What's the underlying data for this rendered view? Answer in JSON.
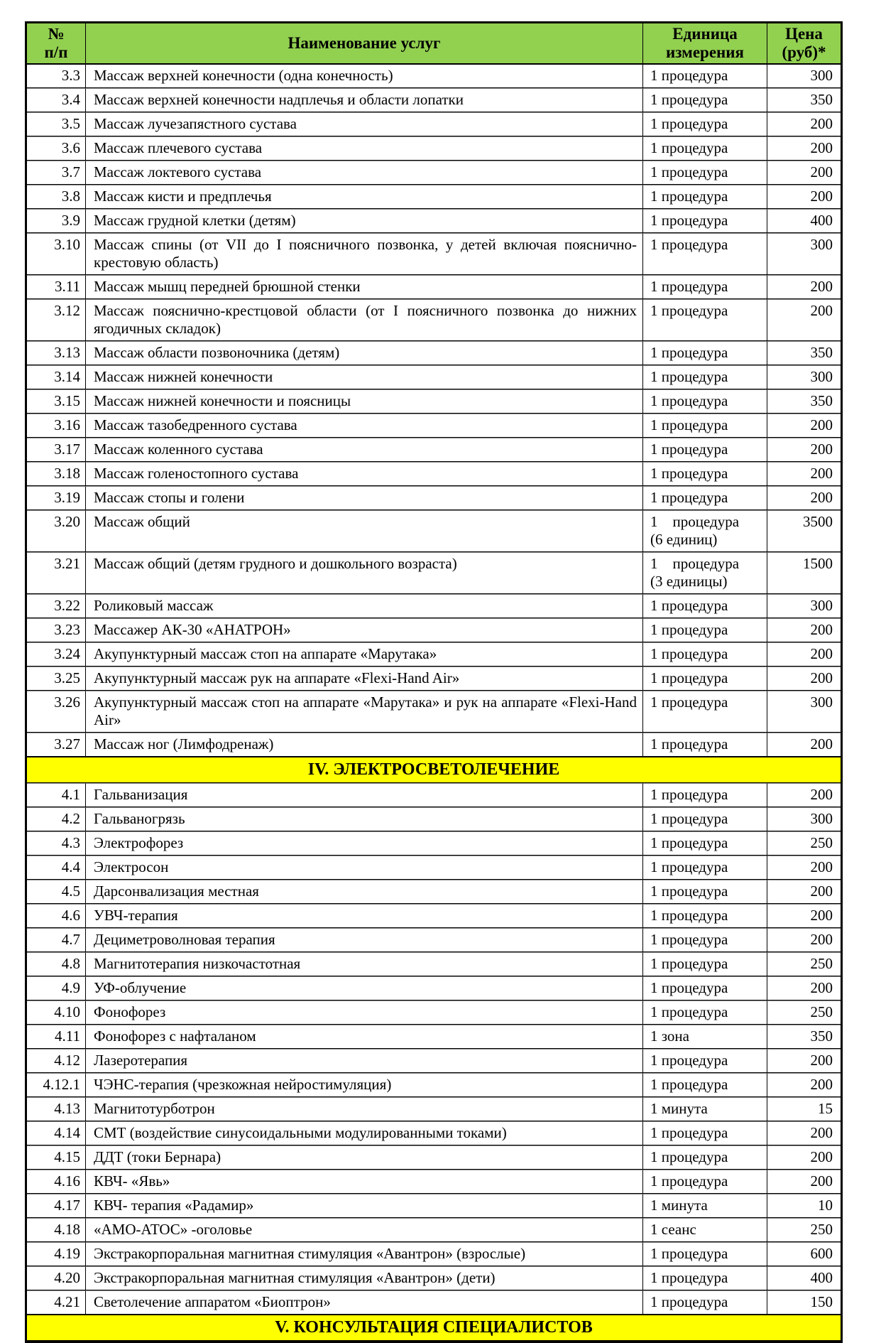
{
  "table": {
    "colors": {
      "header_bg": "#92D050",
      "section_bg": "#FFFF00"
    },
    "headers": {
      "num": "№\nп/п",
      "name": "Наименование услуг",
      "unit": "Единица\nизмерения",
      "price": "Цена\n(руб)*"
    },
    "rows": [
      {
        "num": "3.3",
        "name": "Массаж верхней конечности (одна конечность)",
        "unit": "1 процедура",
        "price": "300"
      },
      {
        "num": "3.4",
        "name": "Массаж верхней конечности надплечья и области лопатки",
        "unit": "1 процедура",
        "price": "350"
      },
      {
        "num": "3.5",
        "name": "Массаж лучезапястного сустава",
        "unit": "1 процедура",
        "price": "200"
      },
      {
        "num": "3.6",
        "name": "Массаж плечевого сустава",
        "unit": "1 процедура",
        "price": "200"
      },
      {
        "num": "3.7",
        "name": "Массаж локтевого сустава",
        "unit": "1 процедура",
        "price": "200"
      },
      {
        "num": "3.8",
        "name": "Массаж кисти и предплечья",
        "unit": "1 процедура",
        "price": "200"
      },
      {
        "num": "3.9",
        "name": "Массаж грудной клетки (детям)",
        "unit": "1 процедура",
        "price": "400"
      },
      {
        "num": "3.10",
        "name": "Массаж спины (от VII до I поясничного позвонка, у детей включая пояснично-крестовую область)",
        "unit": "1 процедура",
        "price": "300"
      },
      {
        "num": "3.11",
        "name": "Массаж мышц передней брюшной стенки",
        "unit": "1 процедура",
        "price": "200"
      },
      {
        "num": "3.12",
        "name": "Массаж пояснично-крестцовой области (от I поясничного позвонка до нижних ягодичных складок)",
        "unit": "1 процедура",
        "price": "200"
      },
      {
        "num": "3.13",
        "name": "Массаж области позвоночника (детям)",
        "unit": "1 процедура",
        "price": "350"
      },
      {
        "num": "3.14",
        "name": "Массаж нижней конечности",
        "unit": "1 процедура",
        "price": "300"
      },
      {
        "num": "3.15",
        "name": "Массаж нижней конечности и поясницы",
        "unit": "1 процедура",
        "price": "350"
      },
      {
        "num": "3.16",
        "name": "Массаж тазобедренного сустава",
        "unit": "1 процедура",
        "price": "200"
      },
      {
        "num": "3.17",
        "name": "Массаж коленного сустава",
        "unit": "1 процедура",
        "price": "200"
      },
      {
        "num": "3.18",
        "name": "Массаж голеностопного сустава",
        "unit": "1 процедура",
        "price": "200"
      },
      {
        "num": "3.19",
        "name": "Массаж стопы и голени",
        "unit": "1 процедура",
        "price": "200"
      },
      {
        "num": "3.20",
        "name": "Массаж общий",
        "unit": "1    процедура\n(6 единиц)",
        "price": "3500"
      },
      {
        "num": "3.21",
        "name": "Массаж общий (детям грудного и дошкольного возраста)",
        "unit": "1    процедура\n(3 единицы)",
        "price": "1500"
      },
      {
        "num": "3.22",
        "name": "Роликовый массаж",
        "unit": "1 процедура",
        "price": "300"
      },
      {
        "num": "3.23",
        "name": "Массажер АК-30 «АНАТРОН»",
        "unit": "1 процедура",
        "price": "200"
      },
      {
        "num": "3.24",
        "name": "Акупунктурный массаж стоп на аппарате «Марутака»",
        "unit": "1 процедура",
        "price": "200"
      },
      {
        "num": "3.25",
        "name": "Акупунктурный массаж рук на аппарате «Flexi-Hand Air»",
        "unit": "1 процедура",
        "price": "200"
      },
      {
        "num": "3.26",
        "name": "Акупунктурный массаж стоп на аппарате «Марутака» и рук на аппарате «Flexi-Hand Air»",
        "unit": "1 процедура",
        "price": "300"
      },
      {
        "num": "3.27",
        "name": "Массаж ног (Лимфодренаж)",
        "unit": "1 процедура",
        "price": "200"
      },
      {
        "section": "IV. ЭЛЕКТРОСВЕТОЛЕЧЕНИЕ"
      },
      {
        "num": "4.1",
        "name": "Гальванизация",
        "unit": "1 процедура",
        "price": "200"
      },
      {
        "num": "4.2",
        "name": "Гальваногрязь",
        "unit": "1 процедура",
        "price": "300"
      },
      {
        "num": "4.3",
        "name": "Электрофорез",
        "unit": "1 процедура",
        "price": "250"
      },
      {
        "num": "4.4",
        "name": "Электросон",
        "unit": "1 процедура",
        "price": "200"
      },
      {
        "num": "4.5",
        "name": "Дарсонвализация местная",
        "unit": "1 процедура",
        "price": "200"
      },
      {
        "num": "4.6",
        "name": "УВЧ-терапия",
        "unit": "1 процедура",
        "price": "200"
      },
      {
        "num": "4.7",
        "name": "Дециметроволновая терапия",
        "unit": "1 процедура",
        "price": "200"
      },
      {
        "num": "4.8",
        "name": "Магнитотерапия низкочастотная",
        "unit": "1 процедура",
        "price": "250"
      },
      {
        "num": "4.9",
        "name": "УФ-облучение",
        "unit": "1 процедура",
        "price": "200"
      },
      {
        "num": "4.10",
        "name": "Фонофорез",
        "unit": "1 процедура",
        "price": "250"
      },
      {
        "num": "4.11",
        "name": "Фонофорез с нафталаном",
        "unit": "1 зона",
        "price": "350"
      },
      {
        "num": "4.12",
        "name": "Лазеротерапия",
        "unit": "1 процедура",
        "price": "200"
      },
      {
        "num": "4.12.1",
        "name": "ЧЭНС-терапия (чрезкожная нейростимуляция)",
        "unit": "1 процедура",
        "price": "200"
      },
      {
        "num": "4.13",
        "name": "Магнитотурботрон",
        "unit": "1 минута",
        "price": "15"
      },
      {
        "num": "4.14",
        "name": "СМТ (воздействие синусоидальными модулированными токами)",
        "unit": "1 процедура",
        "price": "200"
      },
      {
        "num": "4.15",
        "name": "ДДТ (токи Бернара)",
        "unit": "1 процедура",
        "price": "200"
      },
      {
        "num": "4.16",
        "name": "КВЧ- «Явь»",
        "unit": "1 процедура",
        "price": "200"
      },
      {
        "num": "4.17",
        "name": "КВЧ- терапия  «Радамир»",
        "unit": "1 минута",
        "price": "10"
      },
      {
        "num": "4.18",
        "name": "«АМО-АТОС» -оголовье",
        "unit": "1 сеанс",
        "price": "250"
      },
      {
        "num": "4.19",
        "name": "Экстракорпоральная магнитная стимуляция «Авантрон» (взрослые)",
        "unit": "1 процедура",
        "price": "600"
      },
      {
        "num": "4.20",
        "name": "Экстракорпоральная магнитная стимуляция «Авантрон» (дети)",
        "unit": "1 процедура",
        "price": "400"
      },
      {
        "num": "4.21",
        "name": "Светолечение аппаратом «Биоптрон»",
        "unit": "1 процедура",
        "price": "150"
      },
      {
        "section": "V. КОНСУЛЬТАЦИЯ СПЕЦИАЛИСТОВ"
      }
    ]
  }
}
